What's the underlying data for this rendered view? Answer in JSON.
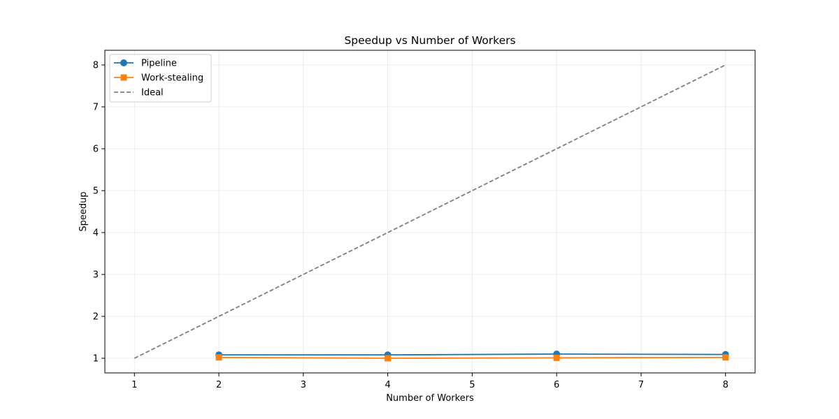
{
  "chart_data": {
    "type": "line",
    "title": "Speedup vs Number of Workers",
    "xlabel": "Number of Workers",
    "ylabel": "Speedup",
    "xlim": [
      0.65,
      8.35
    ],
    "ylim": [
      0.65,
      8.35
    ],
    "xticks": [
      1,
      2,
      3,
      4,
      5,
      6,
      7,
      8
    ],
    "yticks": [
      1,
      2,
      3,
      4,
      5,
      6,
      7,
      8
    ],
    "grid": true,
    "legend_position": "top-left",
    "series": [
      {
        "name": "Pipeline",
        "x": [
          2,
          4,
          6,
          8
        ],
        "y": [
          1.08,
          1.08,
          1.1,
          1.09
        ],
        "color": "#1f77b4",
        "marker": "circle",
        "line_style": "solid"
      },
      {
        "name": "Work-stealing",
        "x": [
          2,
          4,
          6,
          8
        ],
        "y": [
          1.02,
          1.0,
          1.01,
          1.02
        ],
        "color": "#ff7f0e",
        "marker": "square",
        "line_style": "solid"
      },
      {
        "name": "Ideal",
        "x": [
          1,
          8
        ],
        "y": [
          1,
          8
        ],
        "color": "#7f7f7f",
        "marker": "none",
        "line_style": "dashed"
      }
    ]
  }
}
